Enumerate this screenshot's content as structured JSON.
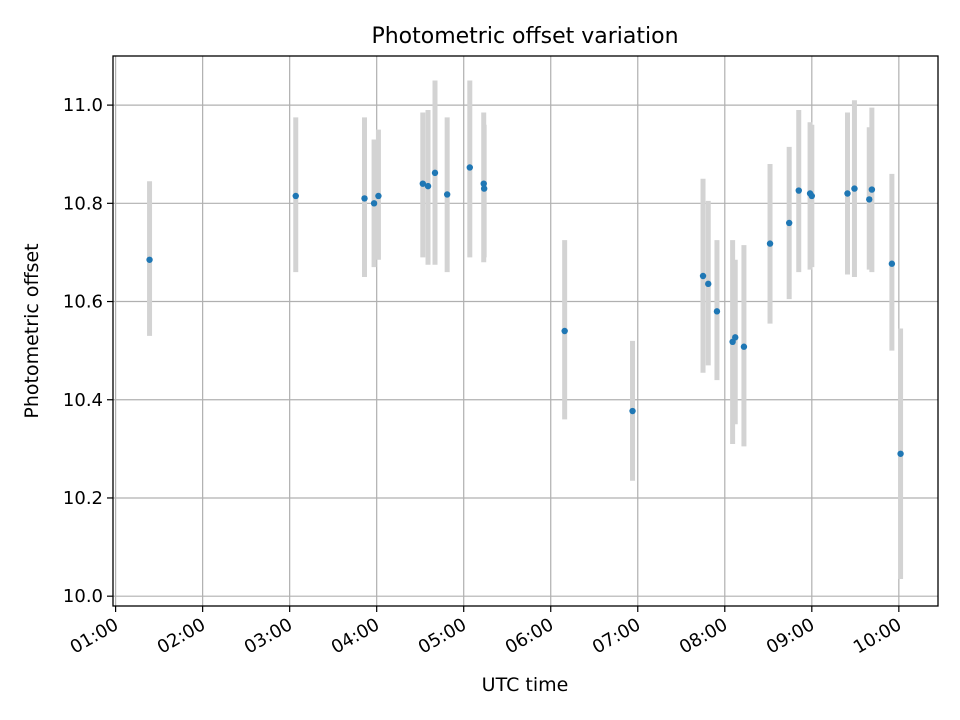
{
  "chart_data": {
    "type": "scatter",
    "title": "Photometric offset variation",
    "xlabel": "UTC time",
    "ylabel": "Photometric offset",
    "x_unit": "hours UTC",
    "xlim": [
      0.97,
      10.45
    ],
    "ylim": [
      9.98,
      11.1
    ],
    "x_ticks": [
      {
        "value": 1,
        "label": "01:00"
      },
      {
        "value": 2,
        "label": "02:00"
      },
      {
        "value": 3,
        "label": "03:00"
      },
      {
        "value": 4,
        "label": "04:00"
      },
      {
        "value": 5,
        "label": "05:00"
      },
      {
        "value": 6,
        "label": "06:00"
      },
      {
        "value": 7,
        "label": "07:00"
      },
      {
        "value": 8,
        "label": "08:00"
      },
      {
        "value": 9,
        "label": "09:00"
      },
      {
        "value": 10,
        "label": "10:00"
      }
    ],
    "y_ticks": [
      {
        "value": 10.0,
        "label": "10.0"
      },
      {
        "value": 10.2,
        "label": "10.2"
      },
      {
        "value": 10.4,
        "label": "10.4"
      },
      {
        "value": 10.6,
        "label": "10.6"
      },
      {
        "value": 10.8,
        "label": "10.8"
      },
      {
        "value": 11.0,
        "label": "11.0"
      }
    ],
    "grid": true,
    "point_color": "#1f77b4",
    "errorbar_color": "#d3d3d3",
    "points": [
      {
        "time": "01:23",
        "x": 1.39,
        "y": 10.685,
        "ylo": 10.53,
        "yhi": 10.845
      },
      {
        "time": "03:04",
        "x": 3.07,
        "y": 10.815,
        "ylo": 10.66,
        "yhi": 10.975
      },
      {
        "time": "03:52",
        "x": 3.86,
        "y": 10.81,
        "ylo": 10.65,
        "yhi": 10.975
      },
      {
        "time": "03:58",
        "x": 3.97,
        "y": 10.8,
        "ylo": 10.67,
        "yhi": 10.93
      },
      {
        "time": "04:01",
        "x": 4.02,
        "y": 10.815,
        "ylo": 10.685,
        "yhi": 10.95
      },
      {
        "time": "04:32",
        "x": 4.53,
        "y": 10.84,
        "ylo": 10.69,
        "yhi": 10.985
      },
      {
        "time": "04:35",
        "x": 4.59,
        "y": 10.835,
        "ylo": 10.675,
        "yhi": 10.99
      },
      {
        "time": "04:40",
        "x": 4.67,
        "y": 10.862,
        "ylo": 10.675,
        "yhi": 11.05
      },
      {
        "time": "04:49",
        "x": 4.81,
        "y": 10.818,
        "ylo": 10.66,
        "yhi": 10.975
      },
      {
        "time": "05:04",
        "x": 5.07,
        "y": 10.873,
        "ylo": 10.69,
        "yhi": 11.05
      },
      {
        "time": "05:13",
        "x": 5.23,
        "y": 10.84,
        "ylo": 10.68,
        "yhi": 10.985
      },
      {
        "time": "05:14",
        "x": 5.235,
        "y": 10.83,
        "ylo": 10.69,
        "yhi": 10.96
      },
      {
        "time": "06:09",
        "x": 6.16,
        "y": 10.54,
        "ylo": 10.36,
        "yhi": 10.725
      },
      {
        "time": "06:56",
        "x": 6.94,
        "y": 10.377,
        "ylo": 10.235,
        "yhi": 10.52
      },
      {
        "time": "07:45",
        "x": 7.75,
        "y": 10.652,
        "ylo": 10.455,
        "yhi": 10.85
      },
      {
        "time": "07:48",
        "x": 7.81,
        "y": 10.636,
        "ylo": 10.47,
        "yhi": 10.805
      },
      {
        "time": "07:54",
        "x": 7.91,
        "y": 10.58,
        "ylo": 10.44,
        "yhi": 10.725
      },
      {
        "time": "08:05",
        "x": 8.09,
        "y": 10.518,
        "ylo": 10.31,
        "yhi": 10.725
      },
      {
        "time": "08:07",
        "x": 8.12,
        "y": 10.527,
        "ylo": 10.35,
        "yhi": 10.685
      },
      {
        "time": "08:13",
        "x": 8.22,
        "y": 10.508,
        "ylo": 10.305,
        "yhi": 10.715
      },
      {
        "time": "08:31",
        "x": 8.52,
        "y": 10.718,
        "ylo": 10.555,
        "yhi": 10.88
      },
      {
        "time": "08:44",
        "x": 8.74,
        "y": 10.76,
        "ylo": 10.605,
        "yhi": 10.915
      },
      {
        "time": "08:51",
        "x": 8.85,
        "y": 10.826,
        "ylo": 10.66,
        "yhi": 10.99
      },
      {
        "time": "08:59",
        "x": 8.98,
        "y": 10.82,
        "ylo": 10.665,
        "yhi": 10.965
      },
      {
        "time": "09:00",
        "x": 9.0,
        "y": 10.815,
        "ylo": 10.67,
        "yhi": 10.96
      },
      {
        "time": "09:24",
        "x": 9.41,
        "y": 10.82,
        "ylo": 10.655,
        "yhi": 10.985
      },
      {
        "time": "09:29",
        "x": 9.49,
        "y": 10.83,
        "ylo": 10.65,
        "yhi": 11.01
      },
      {
        "time": "09:40",
        "x": 9.66,
        "y": 10.808,
        "ylo": 10.665,
        "yhi": 10.955
      },
      {
        "time": "09:41",
        "x": 9.69,
        "y": 10.828,
        "ylo": 10.66,
        "yhi": 10.995
      },
      {
        "time": "09:55",
        "x": 9.92,
        "y": 10.677,
        "ylo": 10.5,
        "yhi": 10.86
      },
      {
        "time": "10:01",
        "x": 10.02,
        "y": 10.29,
        "ylo": 10.035,
        "yhi": 10.545
      }
    ]
  }
}
